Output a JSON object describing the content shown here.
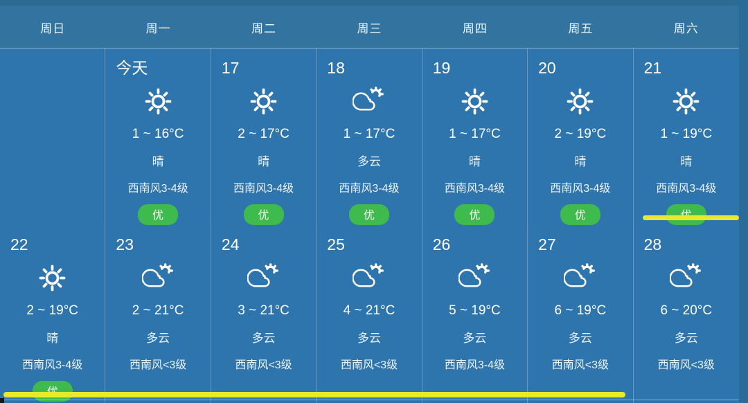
{
  "weekdays": [
    "周日",
    "周一",
    "周二",
    "周三",
    "周四",
    "周五",
    "周六"
  ],
  "rows": [
    {
      "cells": [
        {
          "date": ""
        },
        {
          "date": "今天",
          "icon": "sunny",
          "temp": "1 ~ 16°C",
          "desc": "晴",
          "wind": "西南风3-4级",
          "aqi": "优"
        },
        {
          "date": "17",
          "icon": "sunny",
          "temp": "2 ~ 17°C",
          "desc": "晴",
          "wind": "西南风3-4级",
          "aqi": "优"
        },
        {
          "date": "18",
          "icon": "partly-cloudy",
          "temp": "1 ~ 17°C",
          "desc": "多云",
          "wind": "西南风3-4级",
          "aqi": "优"
        },
        {
          "date": "19",
          "icon": "sunny",
          "temp": "1 ~ 17°C",
          "desc": "晴",
          "wind": "西南风3-4级",
          "aqi": "优"
        },
        {
          "date": "20",
          "icon": "sunny",
          "temp": "2 ~ 19°C",
          "desc": "晴",
          "wind": "西南风3-4级",
          "aqi": "优"
        },
        {
          "date": "21",
          "icon": "sunny",
          "temp": "1 ~ 19°C",
          "desc": "晴",
          "wind": "西南风3-4级",
          "aqi": "优",
          "highlighted": true
        }
      ]
    },
    {
      "cells": [
        {
          "date": "22",
          "icon": "sunny",
          "temp": "2 ~ 19°C",
          "desc": "晴",
          "wind": "西南风3-4级",
          "aqi": "优",
          "highlighted": true
        },
        {
          "date": "23",
          "icon": "partly-cloudy",
          "temp": "2 ~ 21°C",
          "desc": "多云",
          "wind": "西南风<3级",
          "highlighted": true
        },
        {
          "date": "24",
          "icon": "partly-cloudy",
          "temp": "3 ~ 21°C",
          "desc": "多云",
          "wind": "西南风<3级",
          "highlighted": true
        },
        {
          "date": "25",
          "icon": "partly-cloudy",
          "temp": "4 ~ 21°C",
          "desc": "多云",
          "wind": "西南风<3级",
          "highlighted": true
        },
        {
          "date": "26",
          "icon": "partly-cloudy",
          "temp": "5 ~ 19°C",
          "desc": "多云",
          "wind": "西南风3-4级",
          "highlighted": true
        },
        {
          "date": "27",
          "icon": "partly-cloudy",
          "temp": "6 ~ 19°C",
          "desc": "多云",
          "wind": "西南风<3级",
          "highlighted": true
        },
        {
          "date": "28",
          "icon": "partly-cloudy",
          "temp": "6 ~ 20°C",
          "desc": "多云",
          "wind": "西南风<3级"
        }
      ]
    }
  ],
  "colors": {
    "header_bg": "#32749f",
    "cell_bg": "#2f75ad",
    "aqi_good_bg": "#3fba4d",
    "highlight_yellow": "#e9e92c",
    "text": "#ffffff"
  },
  "icons": {
    "sunny": "sun-icon",
    "partly-cloudy": "cloud-sun-icon"
  }
}
